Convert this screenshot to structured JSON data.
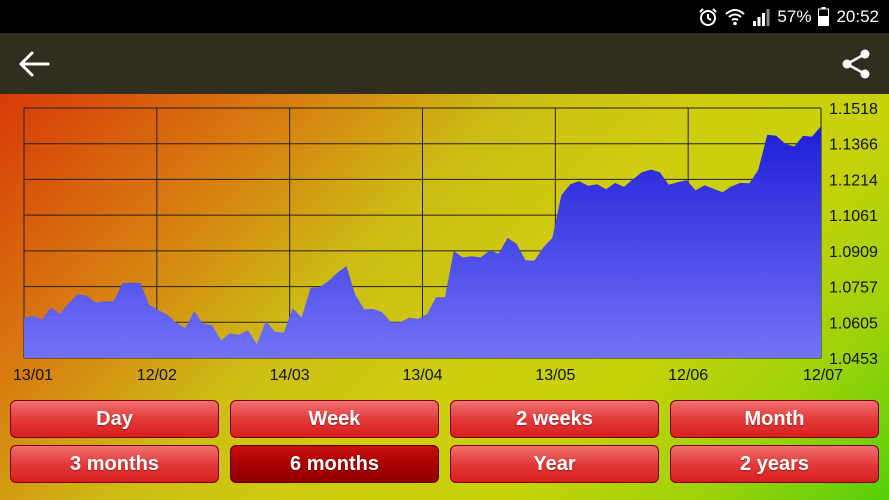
{
  "status_bar": {
    "battery": "57%",
    "time": "20:52",
    "icons": [
      "alarm-icon",
      "wifi-icon",
      "signal-icon",
      "battery-icon"
    ]
  },
  "toolbar": {
    "back_icon": "arrow-left-icon",
    "share_icon": "share-icon",
    "background": "#302f1f"
  },
  "ranges": [
    {
      "label": "Day",
      "active": false
    },
    {
      "label": "Week",
      "active": false
    },
    {
      "label": "2 weeks",
      "active": false
    },
    {
      "label": "Month",
      "active": false
    },
    {
      "label": "3 months",
      "active": false
    },
    {
      "label": "6 months",
      "active": true
    },
    {
      "label": "Year",
      "active": false
    },
    {
      "label": "2 years",
      "active": false
    }
  ],
  "chart_data": {
    "type": "area",
    "title": "",
    "xlabel": "",
    "ylabel": "",
    "x_ticks": [
      "13/01",
      "12/02",
      "14/03",
      "13/04",
      "13/05",
      "12/06",
      "12/07"
    ],
    "y_ticks": [
      "1.1518",
      "1.1366",
      "1.1214",
      "1.1061",
      "1.0909",
      "1.0757",
      "1.0605",
      "1.0453"
    ],
    "ylim": [
      1.0453,
      1.1518
    ],
    "grid": true,
    "fill_colors": [
      "#1e1ed8",
      "#7272f8"
    ],
    "series": [
      {
        "values": [
          1.0623,
          1.0633,
          1.0617,
          1.0668,
          1.0641,
          1.0686,
          1.0725,
          1.0719,
          1.0689,
          1.0695,
          1.0695,
          1.0772,
          1.0774,
          1.0772,
          1.0678,
          1.0657,
          1.0638,
          1.0603,
          1.058,
          1.0653,
          1.06,
          1.0593,
          1.0529,
          1.0558,
          1.0552,
          1.0571,
          1.0512,
          1.061,
          1.0566,
          1.0561,
          1.0665,
          1.0625,
          1.0752,
          1.0754,
          1.0781,
          1.0816,
          1.0845,
          1.0722,
          1.066,
          1.0662,
          1.0648,
          1.0605,
          1.0605,
          1.0625,
          1.0619,
          1.064,
          1.0712,
          1.0712,
          1.0909,
          1.0881,
          1.0887,
          1.0881,
          1.0911,
          1.0897,
          1.0964,
          1.094,
          1.0869,
          1.0867,
          1.0925,
          1.0964,
          1.1146,
          1.1193,
          1.1206,
          1.1187,
          1.1193,
          1.1172,
          1.1199,
          1.1182,
          1.1214,
          1.1244,
          1.1256,
          1.1244,
          1.1191,
          1.1202,
          1.121,
          1.1167,
          1.1189,
          1.1174,
          1.1159,
          1.1184,
          1.1199,
          1.1197,
          1.1255,
          1.1404,
          1.14,
          1.1366,
          1.1354,
          1.1399,
          1.1396,
          1.144
        ]
      }
    ]
  }
}
